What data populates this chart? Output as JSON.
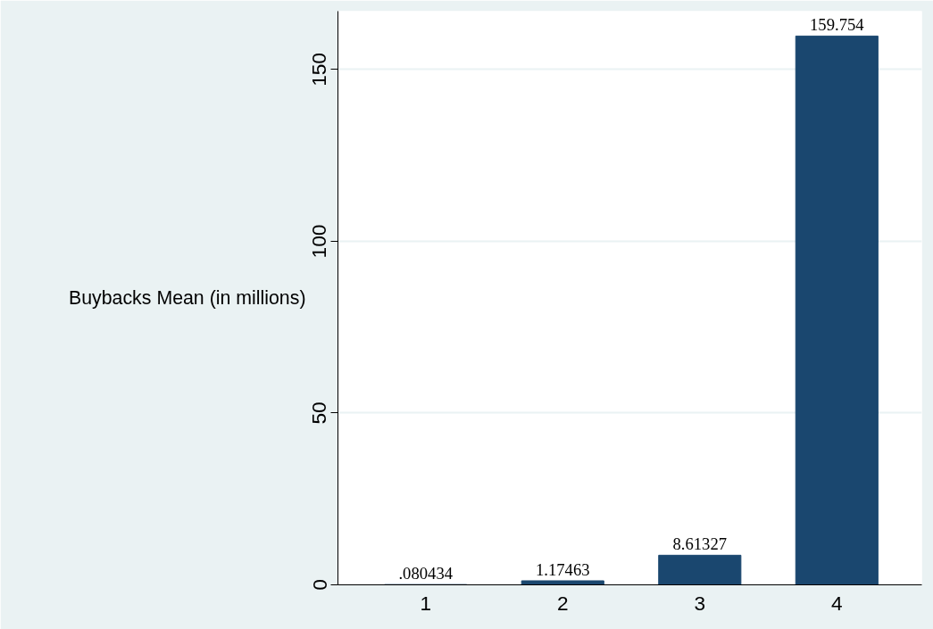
{
  "chart_data": {
    "type": "bar",
    "ylabel": "Buybacks Mean (in millions)",
    "categories": [
      "1",
      "2",
      "3",
      "4"
    ],
    "values": [
      0.080434,
      1.17463,
      8.61327,
      159.754
    ],
    "value_labels": [
      ".080434",
      "1.17463",
      "8.61327",
      "159.754"
    ],
    "color": "#1a476f",
    "ylim": [
      0,
      167
    ],
    "yticks": [
      0,
      50,
      100,
      150
    ],
    "grid": "y"
  }
}
